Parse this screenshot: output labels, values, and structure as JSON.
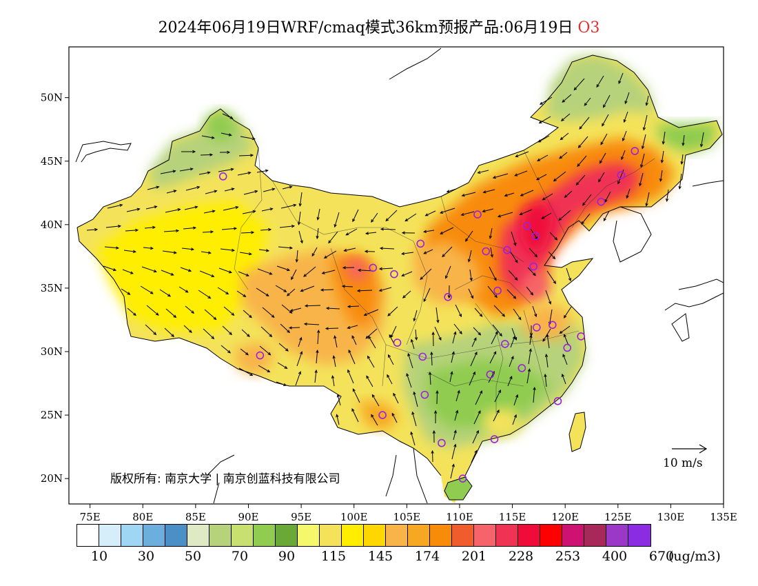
{
  "title": {
    "main": "2024年06月19日WRF/cmaq模式36km预报产品:06月19日",
    "species": "O3"
  },
  "map": {
    "lat_ticks": [
      "50N",
      "45N",
      "40N",
      "35N",
      "30N",
      "25N",
      "20N"
    ],
    "lon_ticks": [
      "75E",
      "80E",
      "85E",
      "90E",
      "95E",
      "100E",
      "105E",
      "110E",
      "115E",
      "120E",
      "125E",
      "130E",
      "135E"
    ],
    "lon_range": [
      73,
      135
    ],
    "lat_range": [
      18,
      54
    ],
    "copyright": "版权所有: 南京大学 | 南京创蓝科技有限公司",
    "reference_vector": "10 m/s"
  },
  "colorbar": {
    "colors": [
      "#ffffff",
      "#d6eefa",
      "#9fd6f3",
      "#6cafdc",
      "#4a90c6",
      "#dfe9c4",
      "#b6d27a",
      "#c7e06f",
      "#8fcc50",
      "#6aa838",
      "#f5f86a",
      "#f4e35a",
      "#ffee00",
      "#ffd700",
      "#f8b448",
      "#f7a823",
      "#f88b07",
      "#f05c2c",
      "#f6636a",
      "#f03255",
      "#ef0c3a",
      "#ff0000",
      "#cd1272",
      "#a7295a",
      "#9b38c8",
      "#8b2ce3"
    ],
    "labels": [
      "10",
      "30",
      "50",
      "70",
      "90",
      "115",
      "145",
      "174",
      "201",
      "228",
      "253",
      "400",
      "670"
    ],
    "unit": "(ug/m3)"
  },
  "stations": [
    {
      "lon": 87.6,
      "lat": 43.8
    },
    {
      "lon": 101.8,
      "lat": 36.6
    },
    {
      "lon": 103.8,
      "lat": 36.1
    },
    {
      "lon": 106.3,
      "lat": 38.5
    },
    {
      "lon": 111.7,
      "lat": 40.8
    },
    {
      "lon": 112.5,
      "lat": 37.9
    },
    {
      "lon": 114.5,
      "lat": 38.0
    },
    {
      "lon": 116.4,
      "lat": 39.9
    },
    {
      "lon": 117.2,
      "lat": 39.1
    },
    {
      "lon": 117.0,
      "lat": 36.7
    },
    {
      "lon": 113.6,
      "lat": 34.8
    },
    {
      "lon": 108.9,
      "lat": 34.3
    },
    {
      "lon": 104.1,
      "lat": 30.7
    },
    {
      "lon": 106.5,
      "lat": 29.6
    },
    {
      "lon": 106.7,
      "lat": 26.6
    },
    {
      "lon": 102.7,
      "lat": 25.0
    },
    {
      "lon": 108.3,
      "lat": 22.8
    },
    {
      "lon": 113.3,
      "lat": 23.1
    },
    {
      "lon": 110.3,
      "lat": 20.0
    },
    {
      "lon": 112.9,
      "lat": 28.2
    },
    {
      "lon": 115.9,
      "lat": 28.7
    },
    {
      "lon": 114.3,
      "lat": 30.6
    },
    {
      "lon": 117.3,
      "lat": 31.9
    },
    {
      "lon": 118.8,
      "lat": 32.1
    },
    {
      "lon": 120.2,
      "lat": 30.3
    },
    {
      "lon": 121.5,
      "lat": 31.2
    },
    {
      "lon": 119.3,
      "lat": 26.1
    },
    {
      "lon": 91.1,
      "lat": 29.7
    },
    {
      "lon": 123.4,
      "lat": 41.8
    },
    {
      "lon": 125.3,
      "lat": 43.9
    },
    {
      "lon": 126.6,
      "lat": 45.8
    }
  ]
}
